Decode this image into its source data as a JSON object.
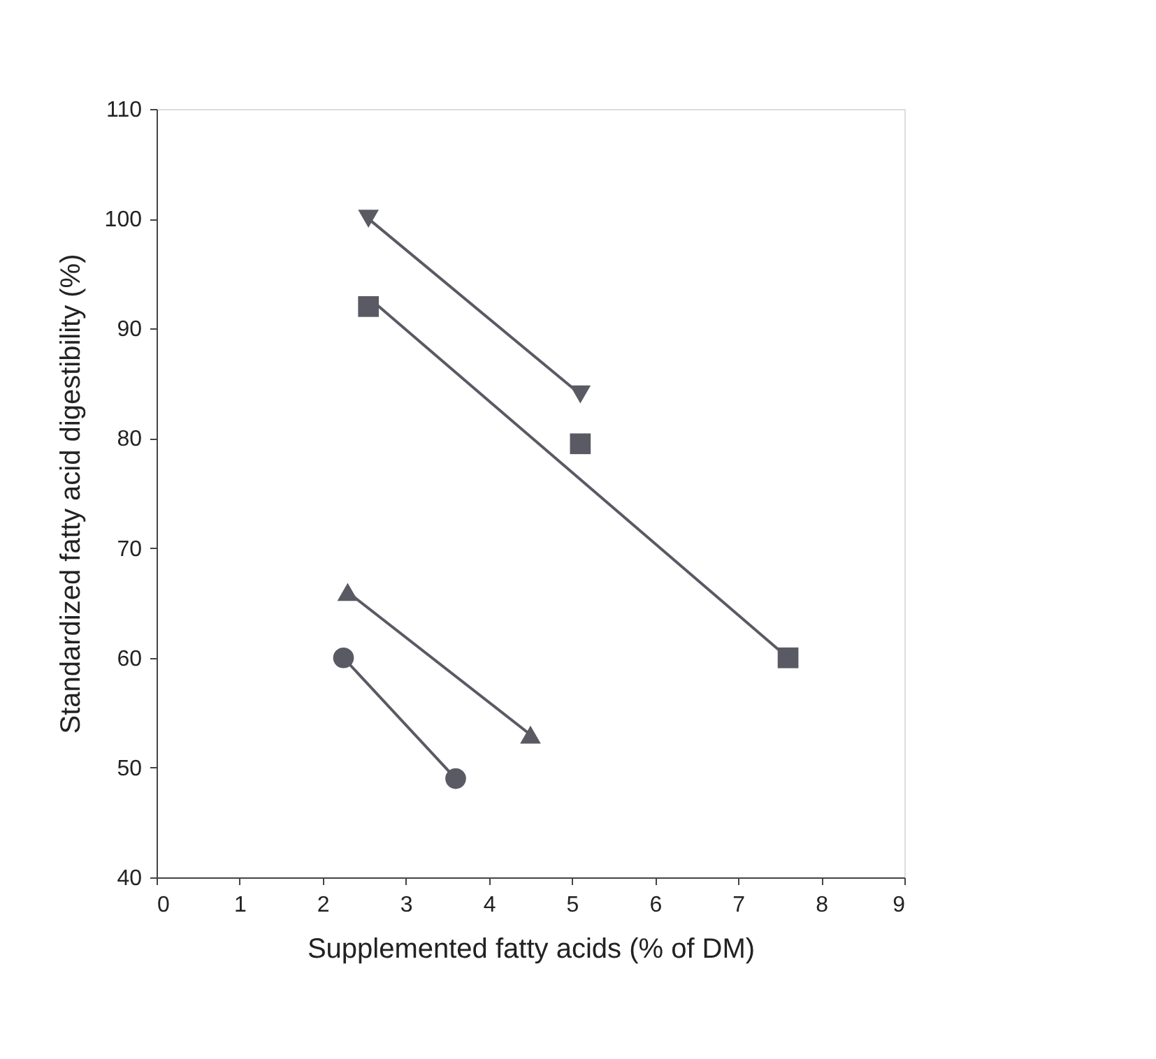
{
  "chart_data": {
    "type": "line",
    "xlabel": "Supplemented fatty acids (% of DM)",
    "ylabel": "Standardized fatty acid digestibility (%)",
    "xlim": [
      0,
      9
    ],
    "xticks": [
      0,
      1,
      2,
      3,
      4,
      5,
      6,
      7,
      8,
      9
    ],
    "ylim": [
      40,
      110
    ],
    "yticks": [
      40,
      50,
      60,
      70,
      80,
      90,
      100,
      110
    ],
    "grid": false,
    "series": [
      {
        "marker": "triangle-down",
        "color": "#5a5a64",
        "x": [
          2.55,
          5.1
        ],
        "values": [
          100,
          84
        ]
      },
      {
        "type": "scatter",
        "marker": "square",
        "color": "#5a5a64",
        "x": [
          2.55,
          5.1,
          7.6
        ],
        "values": [
          92,
          79.5,
          60
        ]
      },
      {
        "marker": "none",
        "color": "#5a5a64",
        "x": [
          2.6,
          7.6
        ],
        "values": [
          92.5,
          60
        ]
      },
      {
        "marker": "triangle",
        "color": "#5a5a64",
        "x": [
          2.3,
          4.5
        ],
        "values": [
          66,
          53
        ]
      },
      {
        "marker": "circle",
        "color": "#5a5a64",
        "x": [
          2.25,
          3.6
        ],
        "values": [
          60,
          49
        ]
      }
    ]
  }
}
